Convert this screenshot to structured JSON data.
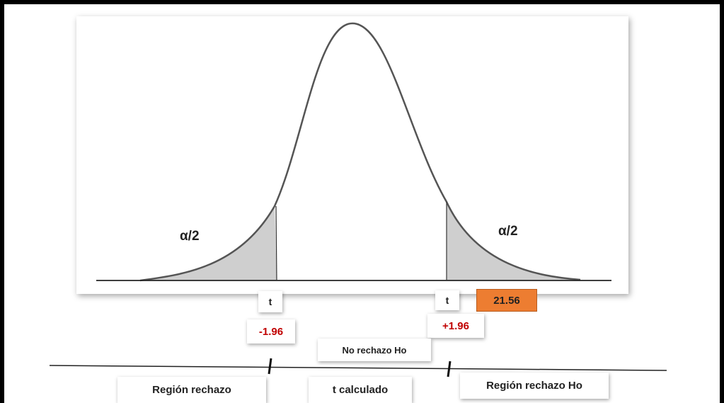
{
  "diagram": {
    "alpha_left": "α/2",
    "alpha_right": "α/2",
    "t_left": "t",
    "t_right": "t",
    "critical_left": "-1.96",
    "critical_right": "+1.96",
    "t_calculated_value": "21.56",
    "no_reject_label": "No rechazo Ho",
    "region_left": "Región rechazo",
    "t_calculated_label": "t calculado",
    "region_right": "Región rechazo Ho",
    "colors": {
      "shade": "#cfcfcf",
      "critical_text": "#c00000",
      "highlight": "#ed7d31"
    }
  }
}
